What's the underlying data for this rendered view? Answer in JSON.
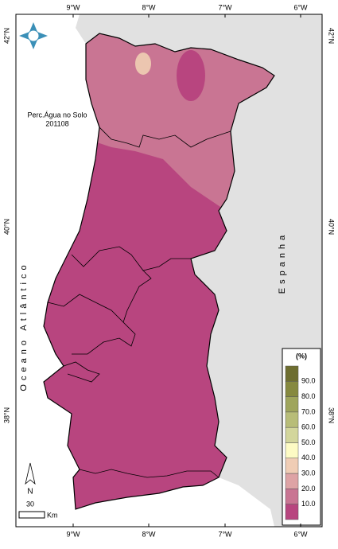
{
  "map": {
    "title": "Perc.Água no Solo",
    "date": "201108",
    "lon_labels": [
      "9°W",
      "8°W",
      "7°W",
      "6°W"
    ],
    "lat_labels": [
      "42°N",
      "40°N",
      "38°N"
    ],
    "sea_label": "Oceano Atlântico",
    "country_label": "Espanha",
    "north": "N",
    "scale_value": "30",
    "scale_unit": "Km",
    "legend": {
      "title": "(%)",
      "labels": [
        "90.0",
        "80.0",
        "70.0",
        "60.0",
        "50.0",
        "40.0",
        "30.0",
        "20.0",
        "10.0"
      ],
      "colors": [
        "#6e6e30",
        "#86893f",
        "#9fa55c",
        "#b8bd78",
        "#d3d69c",
        "#fdfbc4",
        "#f0cdb5",
        "#dea3a5",
        "#c97593",
        "#b8457f"
      ]
    }
  }
}
